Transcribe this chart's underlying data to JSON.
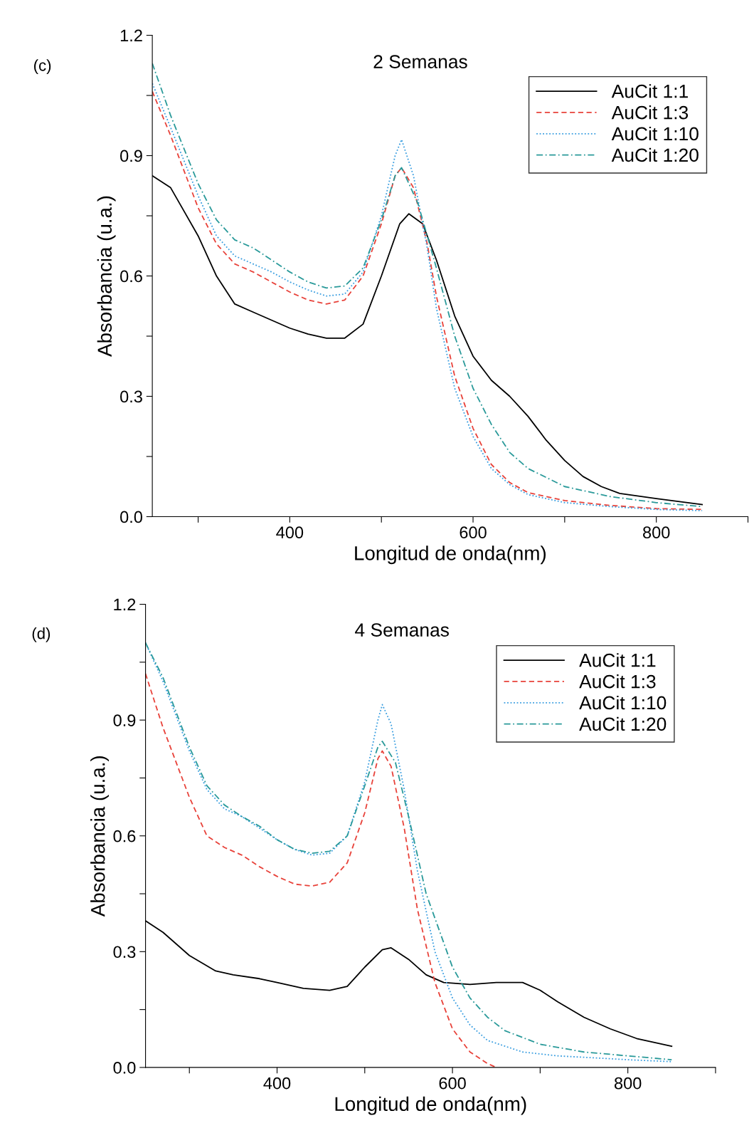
{
  "chart_data": [
    {
      "type": "line",
      "title": "2 Semanas",
      "xlabel": "Longitud de onda(nm)",
      "ylabel": "Absorbancia (u.a.)",
      "annotations": [
        "(c)"
      ],
      "xlim": [
        250,
        900
      ],
      "ylim": [
        0,
        1.2
      ],
      "xticks": [
        {
          "value": 300,
          "label": null
        },
        400,
        {
          "value": 500,
          "label": null
        },
        600,
        {
          "value": 700,
          "label": null
        },
        800,
        {
          "value": 900,
          "label": null
        }
      ],
      "yticks": [
        {
          "value": 0,
          "label": "0.0"
        },
        {
          "value": 0.15,
          "label": null
        },
        0.3,
        {
          "value": 0.45,
          "label": null
        },
        0.6,
        {
          "value": 0.75,
          "label": null
        },
        0.9,
        {
          "value": 1.05,
          "label": null
        },
        1.2
      ],
      "legend": "top right",
      "grid": false,
      "series": [
        {
          "name": "AuCit 1:1",
          "color": "#000000",
          "line_style": "solid",
          "x": [
            250,
            270,
            300,
            320,
            340,
            360,
            380,
            400,
            420,
            440,
            460,
            480,
            500,
            520,
            530,
            545,
            560,
            580,
            600,
            620,
            640,
            660,
            680,
            700,
            720,
            740,
            760,
            800,
            850
          ],
          "values": [
            0.85,
            0.82,
            0.7,
            0.6,
            0.53,
            0.51,
            0.49,
            0.47,
            0.455,
            0.445,
            0.445,
            0.48,
            0.6,
            0.73,
            0.755,
            0.73,
            0.64,
            0.5,
            0.4,
            0.34,
            0.3,
            0.25,
            0.19,
            0.14,
            0.1,
            0.075,
            0.058,
            0.045,
            0.03
          ]
        },
        {
          "name": "AuCit 1:3",
          "color": "#e8423a",
          "line_style": "dashed",
          "x": [
            250,
            270,
            300,
            320,
            340,
            360,
            380,
            400,
            420,
            440,
            460,
            480,
            500,
            515,
            522,
            535,
            550,
            560,
            580,
            600,
            620,
            640,
            660,
            700,
            750,
            800,
            850
          ],
          "values": [
            1.06,
            0.95,
            0.77,
            0.68,
            0.63,
            0.61,
            0.585,
            0.56,
            0.54,
            0.53,
            0.54,
            0.6,
            0.73,
            0.85,
            0.87,
            0.82,
            0.68,
            0.55,
            0.35,
            0.22,
            0.13,
            0.085,
            0.06,
            0.04,
            0.028,
            0.02,
            0.018
          ]
        },
        {
          "name": "AuCit 1:10",
          "color": "#3a9ee0",
          "line_style": "dotted",
          "x": [
            250,
            270,
            300,
            320,
            340,
            360,
            380,
            400,
            420,
            440,
            460,
            480,
            500,
            515,
            522,
            535,
            550,
            560,
            580,
            600,
            620,
            640,
            660,
            700,
            750,
            800,
            850
          ],
          "values": [
            1.08,
            0.97,
            0.8,
            0.7,
            0.65,
            0.63,
            0.61,
            0.585,
            0.565,
            0.55,
            0.555,
            0.61,
            0.75,
            0.9,
            0.94,
            0.85,
            0.67,
            0.52,
            0.32,
            0.2,
            0.12,
            0.08,
            0.055,
            0.035,
            0.025,
            0.018,
            0.015
          ]
        },
        {
          "name": "AuCit 1:20",
          "color": "#2a9a9a",
          "line_style": "dashdot",
          "x": [
            250,
            270,
            300,
            320,
            340,
            360,
            380,
            400,
            420,
            440,
            460,
            480,
            500,
            515,
            522,
            540,
            560,
            580,
            600,
            620,
            640,
            660,
            700,
            750,
            800,
            850
          ],
          "values": [
            1.13,
            1.0,
            0.83,
            0.74,
            0.69,
            0.67,
            0.64,
            0.61,
            0.585,
            0.57,
            0.575,
            0.62,
            0.74,
            0.85,
            0.87,
            0.78,
            0.62,
            0.45,
            0.32,
            0.23,
            0.16,
            0.12,
            0.075,
            0.05,
            0.035,
            0.025
          ]
        }
      ]
    },
    {
      "type": "line",
      "title": "4 Semanas",
      "xlabel": "Longitud de onda(nm)",
      "ylabel": "Absorbancia (u.a.)",
      "annotations": [
        "(d)"
      ],
      "xlim": [
        250,
        900
      ],
      "ylim": [
        0,
        1.2
      ],
      "xticks": [
        {
          "value": 300,
          "label": null
        },
        400,
        {
          "value": 500,
          "label": null
        },
        600,
        {
          "value": 700,
          "label": null
        },
        800,
        {
          "value": 900,
          "label": null
        }
      ],
      "yticks": [
        {
          "value": 0,
          "label": "0.0"
        },
        {
          "value": 0.15,
          "label": null
        },
        0.3,
        {
          "value": 0.45,
          "label": null
        },
        0.6,
        {
          "value": 0.75,
          "label": null
        },
        0.9,
        {
          "value": 1.05,
          "label": null
        },
        1.2
      ],
      "legend": "top right",
      "grid": false,
      "series": [
        {
          "name": "AuCit 1:1",
          "color": "#000000",
          "line_style": "solid",
          "x": [
            250,
            270,
            300,
            330,
            350,
            380,
            400,
            430,
            460,
            480,
            500,
            520,
            530,
            550,
            570,
            590,
            620,
            650,
            680,
            700,
            720,
            750,
            780,
            810,
            850
          ],
          "values": [
            0.38,
            0.35,
            0.29,
            0.25,
            0.24,
            0.23,
            0.22,
            0.205,
            0.2,
            0.21,
            0.26,
            0.305,
            0.31,
            0.28,
            0.24,
            0.22,
            0.215,
            0.22,
            0.22,
            0.2,
            0.17,
            0.13,
            0.1,
            0.075,
            0.055
          ]
        },
        {
          "name": "AuCit 1:3",
          "color": "#e8423a",
          "line_style": "dashed",
          "x": [
            250,
            270,
            300,
            320,
            340,
            360,
            380,
            400,
            420,
            440,
            460,
            480,
            500,
            515,
            520,
            530,
            545,
            560,
            580,
            600,
            620,
            640,
            650
          ],
          "values": [
            1.02,
            0.88,
            0.7,
            0.6,
            0.57,
            0.55,
            0.52,
            0.495,
            0.475,
            0.47,
            0.48,
            0.53,
            0.66,
            0.8,
            0.82,
            0.78,
            0.62,
            0.41,
            0.22,
            0.1,
            0.04,
            0.01,
            0.0
          ]
        },
        {
          "name": "AuCit 1:10",
          "color": "#3a9ee0",
          "line_style": "dotted",
          "x": [
            250,
            270,
            300,
            320,
            340,
            360,
            380,
            400,
            420,
            440,
            460,
            480,
            500,
            515,
            520,
            530,
            545,
            560,
            580,
            600,
            620,
            640,
            680,
            720,
            800,
            850
          ],
          "values": [
            1.1,
            1.0,
            0.82,
            0.72,
            0.67,
            0.65,
            0.62,
            0.59,
            0.565,
            0.55,
            0.555,
            0.6,
            0.74,
            0.9,
            0.94,
            0.89,
            0.72,
            0.51,
            0.3,
            0.18,
            0.11,
            0.07,
            0.04,
            0.03,
            0.02,
            0.015
          ]
        },
        {
          "name": "AuCit 1:20",
          "color": "#2a9a9a",
          "line_style": "dashdot",
          "x": [
            250,
            270,
            300,
            320,
            340,
            360,
            380,
            400,
            420,
            440,
            460,
            480,
            500,
            515,
            520,
            535,
            550,
            570,
            600,
            620,
            640,
            660,
            700,
            750,
            800,
            850
          ],
          "values": [
            1.1,
            1.01,
            0.83,
            0.73,
            0.68,
            0.65,
            0.625,
            0.59,
            0.565,
            0.555,
            0.56,
            0.6,
            0.73,
            0.83,
            0.845,
            0.79,
            0.65,
            0.45,
            0.26,
            0.18,
            0.13,
            0.095,
            0.06,
            0.04,
            0.03,
            0.02
          ]
        }
      ]
    }
  ]
}
